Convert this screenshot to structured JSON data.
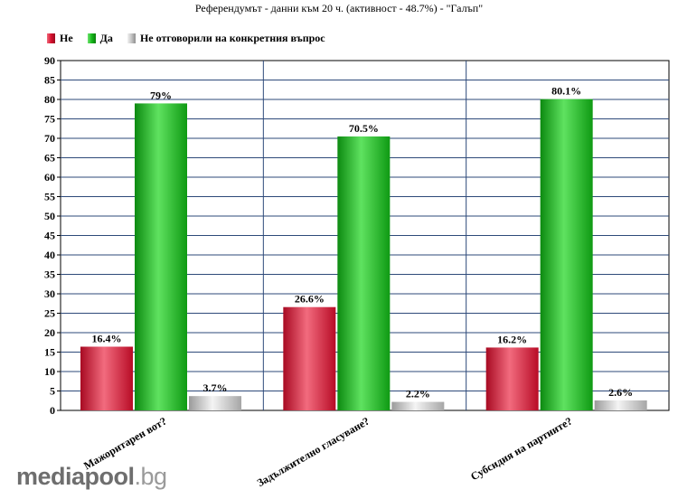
{
  "chart_data": {
    "type": "bar",
    "title": "Референдумът - данни към 20  ч. (активност - 48.7%) - \"Галъп\"",
    "categories": [
      "Мажоритарен вот?",
      "Задължително гласуване?",
      "Субсидия на партиите?"
    ],
    "series": [
      {
        "name": "Не",
        "values": [
          16.4,
          26.6,
          16.2
        ],
        "labels": [
          "16.4%",
          "26.6%",
          "16.2%"
        ],
        "color": "#d8102e"
      },
      {
        "name": "Да",
        "values": [
          79,
          70.5,
          80.1
        ],
        "labels": [
          "79%",
          "70.5%",
          "80.1%"
        ],
        "color": "#16b81a"
      },
      {
        "name": "Не отговорили на конкретния въпрос",
        "values": [
          3.7,
          2.2,
          2.6
        ],
        "labels": [
          "3.7%",
          "2.2%",
          "2.6%"
        ],
        "color": "#c4c4c4"
      }
    ],
    "ylim": [
      0,
      90
    ],
    "yticks": [
      "0",
      "5",
      "10",
      "15",
      "20",
      "25",
      "30",
      "35",
      "40",
      "45",
      "50",
      "55",
      "60",
      "65",
      "70",
      "75",
      "80",
      "85",
      "90"
    ],
    "grid": true,
    "legend": "top-left"
  },
  "watermark": {
    "name": "mediapool",
    "tld": ".bg"
  }
}
